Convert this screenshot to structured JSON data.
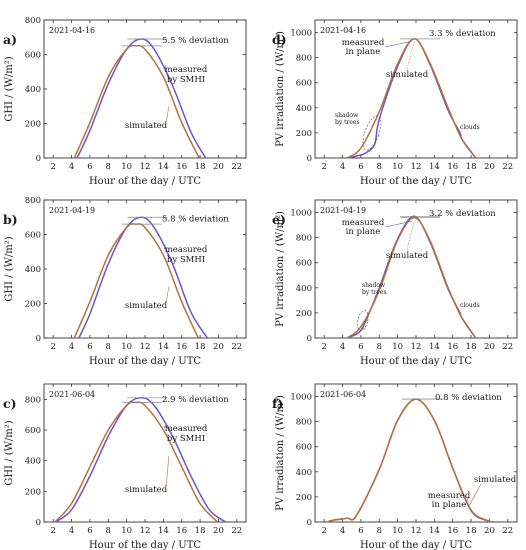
{
  "chart_data": [
    {
      "panel": "a)",
      "type": "line",
      "date": "2021-04-16",
      "xlabel": "Hour of the day / UTC",
      "ylabel": "GHI / (W/m²)",
      "xlim": [
        1,
        23
      ],
      "ylim": [
        0,
        800
      ],
      "xticks": [
        2,
        4,
        6,
        8,
        10,
        12,
        14,
        16,
        18,
        20,
        22
      ],
      "yticks": [
        0,
        200,
        400,
        600,
        800
      ],
      "deviation": "5.5 % deviation",
      "series": [
        {
          "name": "measured\nby SMHI",
          "color": "#6a55d6",
          "x": [
            4.6,
            6,
            8,
            10,
            11.6,
            13,
            15,
            17,
            18.6
          ],
          "y": [
            0,
            160,
            430,
            630,
            690,
            630,
            420,
            150,
            0
          ]
        },
        {
          "name": "simulated",
          "color": "#b8703a",
          "x": [
            4.3,
            6,
            8,
            10,
            11,
            12,
            14,
            16,
            17.9
          ],
          "y": [
            0,
            205,
            470,
            630,
            650,
            630,
            470,
            205,
            0
          ]
        }
      ]
    },
    {
      "panel": "b)",
      "type": "line",
      "date": "2021-04-19",
      "xlabel": "Hour of the day / UTC",
      "ylabel": "GHI / (W/m²)",
      "xlim": [
        1,
        23
      ],
      "ylim": [
        0,
        800
      ],
      "xticks": [
        2,
        4,
        6,
        8,
        10,
        12,
        14,
        16,
        18,
        20,
        22
      ],
      "yticks": [
        0,
        200,
        400,
        600,
        800
      ],
      "deviation": "5.8 % deviation",
      "series": [
        {
          "name": "measured\nby SMHI",
          "color": "#6a55d6",
          "x": [
            4.8,
            6,
            8,
            10,
            11.6,
            13,
            15,
            17,
            18.8
          ],
          "y": [
            0,
            140,
            430,
            640,
            700,
            640,
            430,
            150,
            0
          ]
        },
        {
          "name": "simulated",
          "color": "#b8703a",
          "x": [
            4.3,
            6,
            8,
            10,
            11,
            12,
            14,
            16,
            17.8
          ],
          "y": [
            0,
            210,
            480,
            640,
            660,
            640,
            480,
            210,
            0
          ]
        }
      ]
    },
    {
      "panel": "c)",
      "type": "line",
      "date": "2021-06-04",
      "xlabel": "Hour of the day / UTC",
      "ylabel": "GHI / (W/m²)",
      "xlim": [
        1,
        23
      ],
      "ylim": [
        0,
        900
      ],
      "xticks": [
        2,
        4,
        6,
        8,
        10,
        12,
        14,
        16,
        18,
        20,
        22
      ],
      "yticks": [
        0,
        200,
        400,
        600,
        800
      ],
      "deviation": "2.9 % deviation",
      "series": [
        {
          "name": "measured\nby SMHI",
          "color": "#6a55d6",
          "x": [
            2.3,
            4,
            6,
            8,
            10,
            11.6,
            13,
            15,
            17,
            19,
            20.8
          ],
          "y": [
            0,
            80,
            300,
            560,
            760,
            810,
            760,
            560,
            300,
            80,
            0
          ]
        },
        {
          "name": "simulated",
          "color": "#b8703a",
          "x": [
            2.2,
            4,
            6,
            8,
            10,
            11,
            12,
            14,
            16,
            18,
            19.9
          ],
          "y": [
            0,
            120,
            360,
            600,
            760,
            780,
            760,
            600,
            360,
            120,
            0
          ]
        }
      ]
    },
    {
      "panel": "d)",
      "type": "line",
      "date": "2021-04-16",
      "xlabel": "Hour of the day / UTC",
      "ylabel": "PV irradiation / (W/m²)",
      "xlim": [
        1,
        23
      ],
      "ylim": [
        0,
        1100
      ],
      "xticks": [
        2,
        4,
        6,
        8,
        10,
        12,
        14,
        16,
        18,
        20,
        22
      ],
      "yticks": [
        0,
        200,
        400,
        600,
        800,
        1000
      ],
      "deviation": "3.3 % deviation",
      "shadow_label": "shadow\nby trees",
      "clouds_label": "clouds",
      "series": [
        {
          "name": "measured\nin plane",
          "color": "#6a55d6",
          "x": [
            4.5,
            5.5,
            6.5,
            7.5,
            8,
            10,
            11.8,
            13.5,
            15.5,
            16.8,
            17,
            18.5
          ],
          "y": [
            0,
            15,
            40,
            110,
            310,
            730,
            950,
            750,
            380,
            200,
            150,
            0
          ]
        },
        {
          "name": "simulated",
          "color": "#b8703a",
          "x": [
            4.5,
            6,
            8,
            10,
            11.8,
            13.5,
            15.5,
            17,
            18.5
          ],
          "y": [
            0,
            80,
            370,
            750,
            950,
            760,
            400,
            150,
            0
          ]
        }
      ]
    },
    {
      "panel": "e)",
      "type": "line",
      "date": "2021-04-19",
      "xlabel": "Hour of the day / UTC",
      "ylabel": "PV irradiation / (W/m²)",
      "xlim": [
        1,
        23
      ],
      "ylim": [
        0,
        1100
      ],
      "xticks": [
        2,
        4,
        6,
        8,
        10,
        12,
        14,
        16,
        18,
        20,
        22
      ],
      "yticks": [
        0,
        200,
        400,
        600,
        800,
        1000
      ],
      "deviation": "3.2 % deviation",
      "shadow_label": "shadow\nby trees",
      "clouds_label": "clouds",
      "series": [
        {
          "name": "measured\nin plane",
          "color": "#6a55d6",
          "x": [
            4.5,
            5.5,
            6,
            6.5,
            8,
            10,
            11.8,
            13.5,
            15.5,
            16.8,
            17,
            18.5
          ],
          "y": [
            0,
            30,
            60,
            130,
            400,
            790,
            970,
            770,
            390,
            200,
            160,
            0
          ]
        },
        {
          "name": "simulated",
          "color": "#b8703a",
          "x": [
            4.5,
            6,
            8,
            10,
            11.8,
            13.5,
            15.5,
            17,
            18.5
          ],
          "y": [
            0,
            90,
            380,
            780,
            960,
            780,
            400,
            160,
            0
          ]
        }
      ]
    },
    {
      "panel": "f)",
      "type": "line",
      "date": "2021-06-04",
      "xlabel": "Hour of the day / UTC",
      "ylabel": "PV irradiation / (W/m²)",
      "xlim": [
        1,
        23
      ],
      "ylim": [
        0,
        1100
      ],
      "xticks": [
        2,
        4,
        6,
        8,
        10,
        12,
        14,
        16,
        18,
        20,
        22
      ],
      "yticks": [
        0,
        200,
        400,
        600,
        800,
        1000
      ],
      "deviation": "0.8 % deviation",
      "series": [
        {
          "name": "measured\nin plane",
          "color": "#6a55d6",
          "x": [
            2.3,
            3,
            4.5,
            5.5,
            8,
            10,
            12,
            14,
            16,
            18,
            19.8,
            20.5
          ],
          "y": [
            0,
            15,
            30,
            50,
            420,
            810,
            980,
            810,
            430,
            90,
            10,
            0
          ]
        },
        {
          "name": "simulated",
          "color": "#b8703a",
          "x": [
            2.3,
            3,
            4.5,
            5.5,
            8,
            10,
            12,
            14,
            16,
            18,
            19.8,
            20.5
          ],
          "y": [
            0,
            15,
            30,
            50,
            420,
            810,
            980,
            810,
            430,
            95,
            12,
            0
          ]
        }
      ]
    }
  ]
}
